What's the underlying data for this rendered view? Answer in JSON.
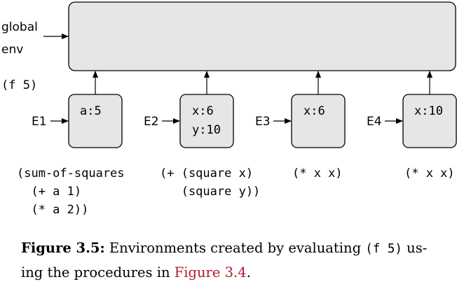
{
  "diagram": {
    "global_label_line1": "global",
    "global_label_line2": "env",
    "call": "(f 5)",
    "frames": [
      {
        "label": "E1",
        "bindings": [
          "a:5"
        ],
        "body": [
          "(sum-of-squares",
          "  (+ a 1)",
          "  (* a 2))"
        ]
      },
      {
        "label": "E2",
        "bindings": [
          "x:6",
          "y:10"
        ],
        "body": [
          "(+ (square x)",
          "   (square y))"
        ]
      },
      {
        "label": "E3",
        "bindings": [
          "x:6"
        ],
        "body": [
          "(* x x)"
        ]
      },
      {
        "label": "E4",
        "bindings": [
          "x:10"
        ],
        "body": [
          "(* x x)"
        ]
      }
    ]
  },
  "caption": {
    "figure_label": "Figure 3.5:",
    "text_before": " Environments created by evaluating ",
    "code": "(f 5)",
    "text_after": " us-ing the procedures in ",
    "ref": "Figure 3.4",
    "end": "."
  }
}
